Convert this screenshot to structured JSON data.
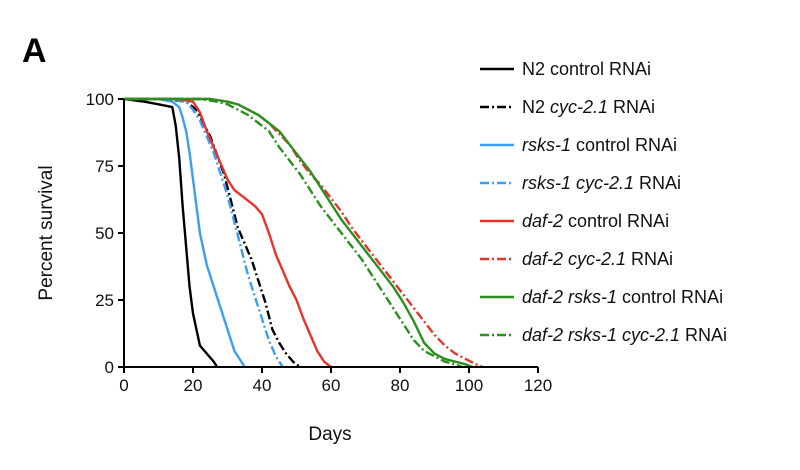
{
  "panel_label": "A",
  "chart_data": {
    "type": "line",
    "xlabel": "Days",
    "ylabel": "Percent survival",
    "xlim": [
      0,
      120
    ],
    "ylim": [
      0,
      100
    ],
    "xticks": [
      "0",
      "20",
      "40",
      "60",
      "80",
      "100",
      "120"
    ],
    "yticks": [
      "0",
      "25",
      "50",
      "75",
      "100"
    ],
    "grid": false,
    "legend_position": "right",
    "series": [
      {
        "name": "N2 control RNAi",
        "name_parts": [
          {
            "text": "N2 control RNAi",
            "italic": false
          }
        ],
        "color": "#000000",
        "dash": "solid",
        "x": [
          0,
          6,
          10,
          14,
          15,
          16,
          17,
          18,
          19,
          20,
          21,
          22,
          24,
          26,
          27
        ],
        "y": [
          100,
          99,
          98,
          97,
          90,
          78,
          60,
          45,
          30,
          20,
          14,
          8,
          5,
          2,
          0
        ]
      },
      {
        "name": "N2 cyc-2.1 RNAi",
        "name_parts": [
          {
            "text": "N2 ",
            "italic": false
          },
          {
            "text": "cyc-2.1",
            "italic": true
          },
          {
            "text": " RNAi",
            "italic": false
          }
        ],
        "color": "#000000",
        "dash": "dashdot",
        "x": [
          0,
          10,
          18,
          21,
          23,
          25,
          27,
          29,
          31,
          33,
          35,
          37,
          39,
          41,
          43,
          45,
          47,
          49,
          51
        ],
        "y": [
          100,
          100,
          99,
          96,
          91,
          86,
          79,
          72,
          62,
          52,
          46,
          40,
          32,
          24,
          14,
          9,
          5,
          2,
          0
        ]
      },
      {
        "name": "rsks-1 control RNAi",
        "name_parts": [
          {
            "text": "rsks-1",
            "italic": true
          },
          {
            "text": " control RNAi",
            "italic": false
          }
        ],
        "color": "#3d9df0",
        "dash": "solid",
        "x": [
          0,
          10,
          14,
          16,
          17,
          18,
          19,
          20,
          21,
          22,
          24,
          26,
          28,
          30,
          32,
          34,
          35
        ],
        "y": [
          100,
          100,
          99,
          97,
          93,
          88,
          80,
          70,
          60,
          50,
          38,
          30,
          22,
          14,
          6,
          2,
          0
        ]
      },
      {
        "name": "rsks-1 cyc-2.1 RNAi",
        "name_parts": [
          {
            "text": "rsks-1 cyc-2.1",
            "italic": true
          },
          {
            "text": " RNAi",
            "italic": false
          }
        ],
        "color": "#3d9df0",
        "dash": "dashdot",
        "x": [
          0,
          12,
          18,
          20,
          22,
          24,
          26,
          28,
          30,
          32,
          34,
          36,
          38,
          40,
          42,
          44,
          46
        ],
        "y": [
          100,
          100,
          99,
          96,
          92,
          86,
          80,
          72,
          64,
          54,
          44,
          34,
          26,
          18,
          10,
          4,
          0
        ]
      },
      {
        "name": "daf-2 control RNAi",
        "name_parts": [
          {
            "text": "daf-2",
            "italic": true
          },
          {
            "text": " control RNAi",
            "italic": false
          }
        ],
        "color": "#e8322b",
        "dash": "solid",
        "x": [
          0,
          15,
          20,
          22,
          24,
          26,
          28,
          30,
          32,
          34,
          36,
          38,
          40,
          42,
          44,
          46,
          48,
          50,
          52,
          54,
          56,
          58,
          60
        ],
        "y": [
          100,
          100,
          99,
          95,
          88,
          82,
          76,
          70,
          66,
          64,
          62,
          60,
          57,
          50,
          42,
          36,
          30,
          25,
          18,
          12,
          6,
          2,
          0
        ]
      },
      {
        "name": "daf-2 cyc-2.1 RNAi",
        "name_parts": [
          {
            "text": "daf-2 cyc-2.1",
            "italic": true
          },
          {
            "text": " RNAi",
            "italic": false
          }
        ],
        "color": "#e8322b",
        "dash": "dashdot",
        "x": [
          0,
          25,
          30,
          33,
          36,
          39,
          42,
          45,
          48,
          51,
          54,
          57,
          60,
          63,
          66,
          69,
          72,
          75,
          78,
          81,
          84,
          87,
          90,
          93,
          96,
          99,
          102,
          104
        ],
        "y": [
          100,
          100,
          99,
          98,
          96,
          94,
          91,
          87,
          83,
          77,
          72,
          68,
          63,
          58,
          52,
          47,
          42,
          37,
          32,
          27,
          22,
          17,
          12,
          8,
          5,
          3,
          1,
          0
        ]
      },
      {
        "name": "daf-2 rsks-1 control RNAi",
        "name_parts": [
          {
            "text": "daf-2 rsks-1",
            "italic": true
          },
          {
            "text": " control RNAi",
            "italic": false
          }
        ],
        "color": "#2b8f1f",
        "dash": "solid",
        "x": [
          0,
          25,
          30,
          33,
          36,
          39,
          42,
          45,
          48,
          51,
          54,
          57,
          60,
          63,
          66,
          69,
          72,
          75,
          78,
          81,
          84,
          87,
          90,
          93,
          96,
          99,
          101
        ],
        "y": [
          100,
          100,
          99,
          98,
          96,
          94,
          91,
          88,
          83,
          78,
          73,
          67,
          61,
          55,
          50,
          45,
          40,
          35,
          30,
          24,
          17,
          9,
          5,
          3,
          2,
          1,
          0
        ]
      },
      {
        "name": "daf-2 rsks-1 cyc-2.1 RNAi",
        "name_parts": [
          {
            "text": "daf-2 rsks-1 cyc-2.1",
            "italic": true
          },
          {
            "text": " RNAi",
            "italic": false
          }
        ],
        "color": "#2b8f1f",
        "dash": "dashdot",
        "x": [
          0,
          22,
          27,
          30,
          33,
          36,
          39,
          42,
          45,
          48,
          51,
          54,
          57,
          60,
          63,
          66,
          69,
          72,
          75,
          78,
          81,
          84,
          87,
          90,
          93,
          96,
          98
        ],
        "y": [
          100,
          100,
          99,
          98,
          96,
          94,
          91,
          88,
          82,
          77,
          72,
          66,
          60,
          55,
          50,
          45,
          40,
          34,
          28,
          22,
          16,
          10,
          6,
          4,
          2,
          1,
          0
        ]
      }
    ]
  }
}
